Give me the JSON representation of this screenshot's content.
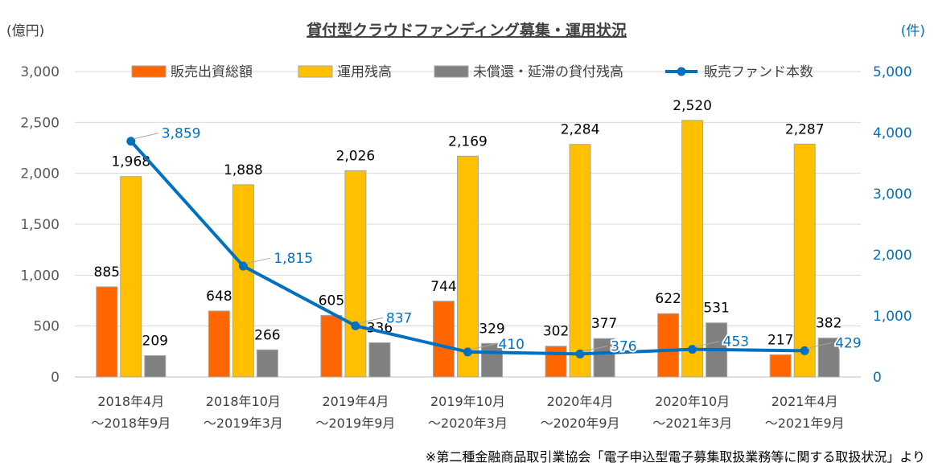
{
  "colors": {
    "amount": "#ff6600",
    "balance": "#ffc000",
    "delinquent": "#808080",
    "funds_line": "#0070c0",
    "axis_text": "#595959",
    "right_axis_text": "#0070c0",
    "grid": "#d9d9d9"
  },
  "chart_data": {
    "type": "bar",
    "title": "貸付型クラウドファンディング募集・運用状況",
    "ylabel": "(億円)",
    "y2label": "(件)",
    "ylim": [
      0,
      3000
    ],
    "y2lim": [
      0,
      5000
    ],
    "yticks": [
      "0",
      "500",
      "1,000",
      "1,500",
      "2,000",
      "2,500",
      "3,000"
    ],
    "y2ticks": [
      "0",
      "1,000",
      "2,000",
      "3,000",
      "4,000",
      "5,000"
    ],
    "grid": true,
    "legend_position": "top",
    "categories": [
      [
        "2018年4月",
        "～2018年9月"
      ],
      [
        "2018年10月",
        "～2019年3月"
      ],
      [
        "2019年4月",
        "～2019年9月"
      ],
      [
        "2019年10月",
        "～2020年3月"
      ],
      [
        "2020年4月",
        "～2020年9月"
      ],
      [
        "2020年10月",
        "～2021年3月"
      ],
      [
        "2021年4月",
        "～2021年9月"
      ]
    ],
    "series": [
      {
        "name": "販売出資総額",
        "kind": "bar",
        "axis": "left",
        "values": [
          885,
          648,
          605,
          744,
          302,
          622,
          217
        ],
        "labels": [
          "885",
          "648",
          "605",
          "744",
          "302",
          "622",
          "217"
        ]
      },
      {
        "name": "運用残高",
        "kind": "bar",
        "axis": "left",
        "values": [
          1968,
          1888,
          2026,
          2169,
          2284,
          2520,
          2287
        ],
        "labels": [
          "1,968",
          "1,888",
          "2,026",
          "2,169",
          "2,284",
          "2,520",
          "2,287"
        ]
      },
      {
        "name": "未償還・延滞の貸付残高",
        "kind": "bar",
        "axis": "left",
        "values": [
          209,
          266,
          336,
          329,
          377,
          531,
          382
        ],
        "labels": [
          "209",
          "266",
          "336",
          "329",
          "377",
          "531",
          "382"
        ]
      },
      {
        "name": "販売ファンド本数",
        "kind": "line",
        "axis": "right",
        "values": [
          3859,
          1815,
          837,
          410,
          376,
          453,
          429
        ],
        "labels": [
          "3,859",
          "1,815",
          "837",
          "410",
          "376",
          "453",
          "429"
        ]
      }
    ],
    "source_note": "※第二種金融商品取引業協会「電子申込型電子募集取扱業務等に関する取扱状況」より"
  }
}
